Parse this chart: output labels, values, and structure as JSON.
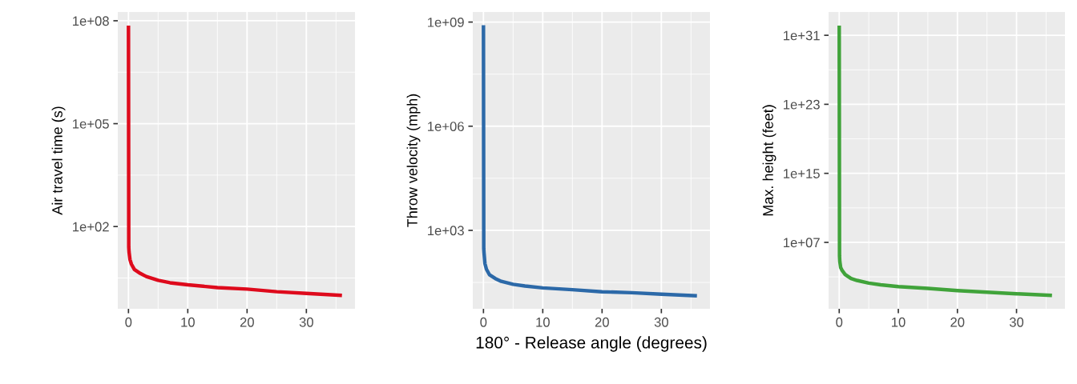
{
  "chart_data": [
    {
      "type": "line",
      "ylabel": "Air travel time (s)",
      "log": "y",
      "grid": true,
      "xlim": [
        -1.8,
        38.2
      ],
      "xticks": [
        0,
        10,
        20,
        30
      ],
      "ylim": [
        0.4,
        180000000.0
      ],
      "yticks": [
        {
          "value": 100,
          "label": "1e+02"
        },
        {
          "value": 100000,
          "label": "1e+05"
        },
        {
          "value": 100000000,
          "label": "1e+08"
        }
      ],
      "series": [
        {
          "color": "#de0a1c",
          "x": [
            0,
            0.05,
            0.1,
            0.25,
            0.5,
            1,
            2,
            3,
            5,
            7,
            10,
            15,
            20,
            25,
            30,
            36
          ],
          "values": [
            72000000.0,
            25,
            18,
            11,
            8,
            5.6,
            4.3,
            3.5,
            2.7,
            2.3,
            2.0,
            1.66,
            1.5,
            1.26,
            1.12,
            0.98
          ]
        }
      ]
    },
    {
      "type": "line",
      "ylabel": "Throw velocity (mph)",
      "xlabel": "180° - Release angle (degrees)",
      "log": "y",
      "grid": true,
      "xlim": [
        -1.8,
        38.2
      ],
      "xticks": [
        0,
        10,
        20,
        30
      ],
      "ylim": [
        5.5,
        1950000000.0
      ],
      "yticks": [
        {
          "value": 1000,
          "label": "1e+03"
        },
        {
          "value": 1000000,
          "label": "1e+06"
        },
        {
          "value": 1000000000,
          "label": "1e+09"
        }
      ],
      "series": [
        {
          "color": "#2c69a8",
          "x": [
            0,
            0.05,
            0.1,
            0.25,
            0.5,
            1,
            2,
            3,
            5,
            7,
            10,
            15,
            20,
            25,
            30,
            36
          ],
          "values": [
            810000000.0,
            300,
            220,
            110,
            76,
            53,
            41,
            34,
            28,
            25,
            22,
            19.5,
            17,
            16,
            14.5,
            13
          ]
        }
      ]
    },
    {
      "type": "line",
      "ylabel": "Max. height (feet)",
      "log": "y",
      "grid": true,
      "xlim": [
        -1.8,
        38.2
      ],
      "xticks": [
        0,
        10,
        20,
        30
      ],
      "ylim": [
        0.2,
        5e+33
      ],
      "yticks": [
        {
          "value": 10000000.0,
          "label": "1e+07"
        },
        {
          "value": 1000000000000000.0,
          "label": "1e+15"
        },
        {
          "value": 1e+23,
          "label": "1e+23"
        },
        {
          "value": 1e+31,
          "label": "1e+31"
        }
      ],
      "series": [
        {
          "color": "#40a33a",
          "x": [
            0,
            0.05,
            0.1,
            0.25,
            0.5,
            1,
            2,
            3,
            5,
            7,
            10,
            15,
            20,
            25,
            30,
            36
          ],
          "values": [
            1.3e+32,
            270000.0,
            60000.0,
            12000.0,
            5400.0,
            1900.0,
            640,
            390,
            190,
            120,
            76,
            47,
            26,
            17,
            11,
            7.2
          ]
        }
      ]
    }
  ]
}
